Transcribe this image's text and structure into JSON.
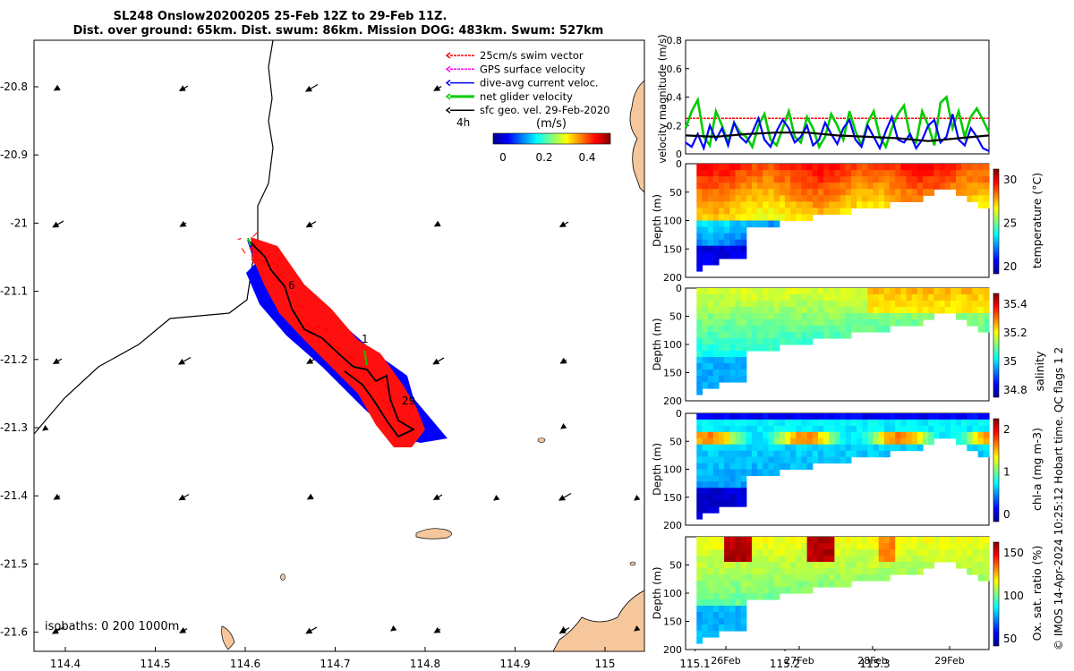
{
  "header": {
    "title_line1": "SL248 Onslow20200205 25-Feb 12Z to 29-Feb 11Z.",
    "title_line2": "Dist. over ground: 65km. Dist. swum: 86km. Mission DOG: 483km. Swum: 527km"
  },
  "map": {
    "x_ticks": [
      "114.4",
      "114.5",
      "114.6",
      "114.7",
      "114.8",
      "114.9",
      "115",
      "115.1",
      "115.2",
      "115.3"
    ],
    "y_ticks": [
      "-20.8",
      "-20.9",
      "-21",
      "-21.1",
      "-21.2",
      "-21.3",
      "-21.4",
      "-21.5",
      "-21.6"
    ],
    "legend": [
      {
        "label": "25cm/s swim vector",
        "color": "#ff0000"
      },
      {
        "label": "GPS surface velocity",
        "color": "#ff00ff"
      },
      {
        "label": "dive-avg current veloc.",
        "color": "#0000ff"
      },
      {
        "label": "net glider velocity",
        "color": "#00cc00"
      },
      {
        "label": "sfc geo. vel. 29-Feb-2020",
        "color": "#000000"
      }
    ],
    "legend_extra": "4h",
    "colorbar": {
      "title": "(m/s)",
      "ticks": [
        "0",
        "0.2",
        "0.4"
      ]
    },
    "day_labels": [
      "6",
      "1",
      "29"
    ],
    "isobaths": "isobaths: 0   200  1000m"
  },
  "chart_data": [
    {
      "type": "line",
      "title": "",
      "ylabel": "velocity magnitude (m/s)",
      "ylim": [
        0,
        0.8
      ],
      "yticks": [
        "0",
        "0.2",
        "0.4",
        "0.6",
        "0.8"
      ],
      "series": [
        {
          "name": "25cm/s swim vector",
          "color": "#ff0000",
          "x": [
            0,
            1
          ],
          "values": [
            0.25,
            0.25
          ]
        },
        {
          "name": "net glider velocity",
          "color": "#00cc00",
          "x": [
            0,
            0.02,
            0.04,
            0.06,
            0.08,
            0.1,
            0.12,
            0.14,
            0.16,
            0.18,
            0.2,
            0.22,
            0.24,
            0.26,
            0.28,
            0.3,
            0.32,
            0.34,
            0.36,
            0.38,
            0.4,
            0.42,
            0.44,
            0.46,
            0.48,
            0.5,
            0.52,
            0.54,
            0.56,
            0.58,
            0.6,
            0.62,
            0.64,
            0.66,
            0.68,
            0.7,
            0.72,
            0.74,
            0.76,
            0.78,
            0.8,
            0.82,
            0.84,
            0.86,
            0.88,
            0.9,
            0.92,
            0.94,
            0.96,
            0.98,
            1.0
          ],
          "values": [
            0.18,
            0.3,
            0.38,
            0.12,
            0.06,
            0.3,
            0.2,
            0.08,
            0.22,
            0.15,
            0.12,
            0.05,
            0.2,
            0.28,
            0.1,
            0.06,
            0.18,
            0.3,
            0.12,
            0.08,
            0.26,
            0.18,
            0.05,
            0.12,
            0.28,
            0.2,
            0.1,
            0.3,
            0.16,
            0.06,
            0.22,
            0.3,
            0.12,
            0.05,
            0.18,
            0.28,
            0.34,
            0.12,
            0.08,
            0.3,
            0.2,
            0.06,
            0.36,
            0.4,
            0.18,
            0.3,
            0.12,
            0.26,
            0.32,
            0.24,
            0.15
          ]
        },
        {
          "name": "dive-avg current veloc.",
          "color": "#0000ff",
          "x": [
            0,
            0.02,
            0.04,
            0.06,
            0.08,
            0.1,
            0.12,
            0.14,
            0.16,
            0.18,
            0.2,
            0.22,
            0.24,
            0.26,
            0.28,
            0.3,
            0.32,
            0.34,
            0.36,
            0.38,
            0.4,
            0.42,
            0.44,
            0.46,
            0.48,
            0.5,
            0.52,
            0.54,
            0.56,
            0.58,
            0.6,
            0.62,
            0.64,
            0.66,
            0.68,
            0.7,
            0.72,
            0.74,
            0.76,
            0.78,
            0.8,
            0.82,
            0.84,
            0.86,
            0.88,
            0.9,
            0.92,
            0.94,
            0.96,
            0.98,
            1.0
          ],
          "values": [
            0.08,
            0.05,
            0.14,
            0.04,
            0.2,
            0.1,
            0.18,
            0.06,
            0.22,
            0.12,
            0.08,
            0.15,
            0.25,
            0.1,
            0.05,
            0.16,
            0.24,
            0.18,
            0.08,
            0.12,
            0.2,
            0.06,
            0.1,
            0.22,
            0.14,
            0.07,
            0.18,
            0.24,
            0.1,
            0.05,
            0.2,
            0.12,
            0.04,
            0.16,
            0.26,
            0.1,
            0.08,
            0.14,
            0.04,
            0.1,
            0.2,
            0.24,
            0.08,
            0.12,
            0.28,
            0.1,
            0.06,
            0.18,
            0.12,
            0.04,
            0.02
          ]
        },
        {
          "name": "sfc geo. vel.",
          "color": "#000000",
          "x": [
            0,
            0.1,
            0.2,
            0.3,
            0.4,
            0.5,
            0.6,
            0.7,
            0.8,
            0.9,
            1.0
          ],
          "values": [
            0.13,
            0.12,
            0.14,
            0.15,
            0.15,
            0.13,
            0.12,
            0.11,
            0.09,
            0.11,
            0.13
          ]
        }
      ]
    },
    {
      "type": "heatmap",
      "ylabel": "Depth (m)",
      "ylim": [
        200,
        0
      ],
      "yticks": [
        "0",
        "50",
        "100",
        "150",
        "200"
      ],
      "colorbar_label": "temperature (°C)",
      "colorbar_ticks": [
        "30",
        "25",
        "20"
      ],
      "range": [
        18,
        31
      ]
    },
    {
      "type": "heatmap",
      "ylabel": "Depth (m)",
      "ylim": [
        200,
        0
      ],
      "yticks": [
        "0",
        "50",
        "100",
        "150",
        "200"
      ],
      "colorbar_label": "salinity",
      "colorbar_ticks": [
        "35.4",
        "35.2",
        "35",
        "34.8"
      ],
      "range": [
        34.75,
        35.5
      ]
    },
    {
      "type": "heatmap",
      "ylabel": "Depth (m)",
      "ylim": [
        200,
        0
      ],
      "yticks": [
        "0",
        "50",
        "100",
        "150",
        "200"
      ],
      "colorbar_label": "chl-a (mg m-3)",
      "colorbar_ticks": [
        "2",
        "1",
        "0"
      ],
      "range": [
        0,
        2
      ]
    },
    {
      "type": "heatmap",
      "ylabel": "Depth (m)",
      "ylim": [
        200,
        0
      ],
      "yticks": [
        "50",
        "100",
        "150",
        "200"
      ],
      "xticks": [
        "26Feb",
        "27Feb",
        "28Feb",
        "29Feb"
      ],
      "colorbar_label": "Ox. sat. ratio (%)",
      "colorbar_ticks": [
        "150",
        "100",
        "50"
      ],
      "range": [
        30,
        170
      ]
    }
  ],
  "side_note": "© IMOS 14-Apr-2024 10:25:12 Hobart time. QC flags 1  2"
}
